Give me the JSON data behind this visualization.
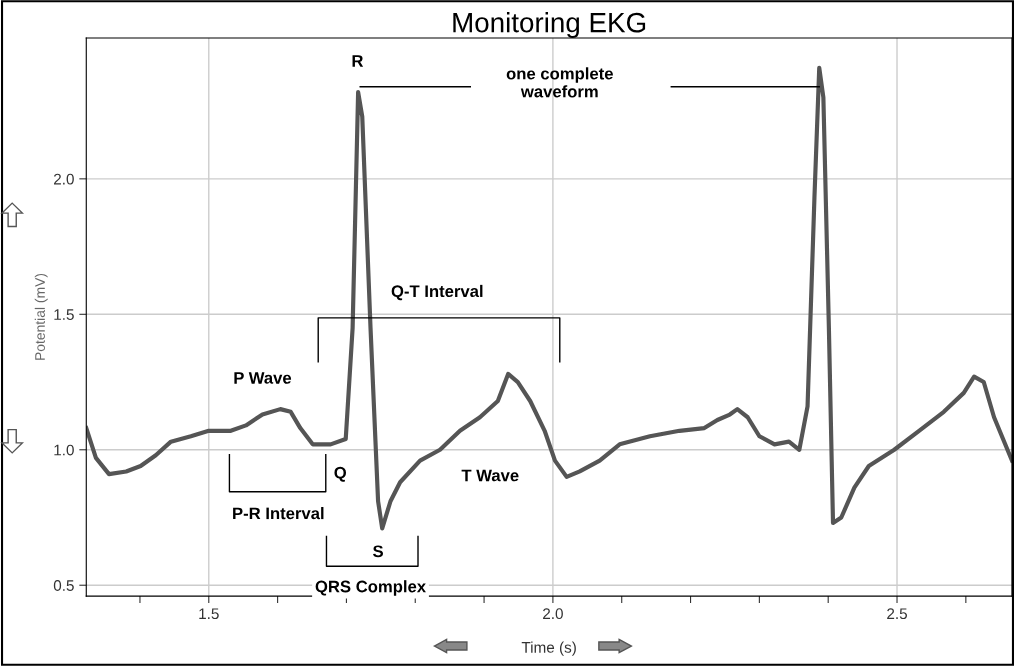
{
  "chart_data": {
    "type": "line",
    "title": "Monitoring EKG",
    "xlabel": "Time (s)",
    "ylabel": "Potential (mV)",
    "x": [
      1.322,
      1.336,
      1.355,
      1.38,
      1.401,
      1.423,
      1.445,
      1.474,
      1.5,
      1.532,
      1.554,
      1.578,
      1.604,
      1.619,
      1.633,
      1.651,
      1.677,
      1.699,
      1.709,
      1.717,
      1.723,
      1.735,
      1.746,
      1.752,
      1.764,
      1.778,
      1.807,
      1.836,
      1.865,
      1.894,
      1.92,
      1.935,
      1.949,
      1.967,
      1.988,
      2.003,
      2.02,
      2.039,
      2.068,
      2.097,
      2.141,
      2.184,
      2.22,
      2.239,
      2.257,
      2.268,
      2.283,
      2.3,
      2.322,
      2.343,
      2.358,
      2.37,
      2.38,
      2.387,
      2.393,
      2.401,
      2.407,
      2.419,
      2.438,
      2.459,
      2.496,
      2.532,
      2.568,
      2.597,
      2.612,
      2.626,
      2.641,
      2.667
    ],
    "series": [
      {
        "color": "#555555",
        "values": [
          1.08,
          0.97,
          0.91,
          0.92,
          0.94,
          0.98,
          1.03,
          1.05,
          1.07,
          1.07,
          1.09,
          1.13,
          1.15,
          1.14,
          1.08,
          1.02,
          1.02,
          1.04,
          1.45,
          2.32,
          2.23,
          1.45,
          0.81,
          0.71,
          0.81,
          0.88,
          0.96,
          1.0,
          1.07,
          1.12,
          1.18,
          1.28,
          1.25,
          1.18,
          1.07,
          0.96,
          0.9,
          0.92,
          0.96,
          1.02,
          1.05,
          1.07,
          1.08,
          1.11,
          1.13,
          1.15,
          1.12,
          1.05,
          1.02,
          1.03,
          1.0,
          1.16,
          1.93,
          2.41,
          2.3,
          1.45,
          0.73,
          0.75,
          0.86,
          0.94,
          1.0,
          1.07,
          1.14,
          1.21,
          1.27,
          1.25,
          1.12,
          0.96
        ]
      }
    ],
    "xlim": [
      1.322,
      2.667
    ],
    "ylim": [
      0.46,
      2.52
    ],
    "xticks": [
      {
        "value": 1.4,
        "label": null
      },
      {
        "value": 1.5,
        "label": "1.5"
      },
      {
        "value": 1.6,
        "label": null
      },
      {
        "value": 1.7,
        "label": null
      },
      {
        "value": 1.8,
        "label": null
      },
      {
        "value": 1.9,
        "label": null
      },
      {
        "value": 2.0,
        "label": "2.0"
      },
      {
        "value": 2.1,
        "label": null
      },
      {
        "value": 2.2,
        "label": null
      },
      {
        "value": 2.3,
        "label": null
      },
      {
        "value": 2.4,
        "label": null
      },
      {
        "value": 2.5,
        "label": "2.5"
      },
      {
        "value": 2.6,
        "label": null
      }
    ],
    "yticks": [
      {
        "value": 0.5,
        "label": "0.5"
      },
      {
        "value": 1.0,
        "label": "1.0"
      },
      {
        "value": 1.5,
        "label": "1.5"
      },
      {
        "value": 2.0,
        "label": "2.0"
      }
    ],
    "grid": true,
    "marker": "none",
    "line_style": "solid",
    "annotations": [
      "R",
      "one complete\nwaveform",
      "Q-T Interval",
      "P Wave",
      "Q",
      "T Wave",
      "P-R Interval",
      "S",
      "QRS Complex"
    ]
  }
}
